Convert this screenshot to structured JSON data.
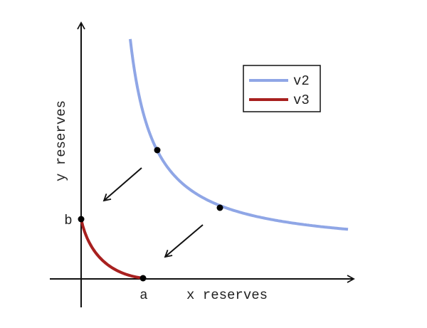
{
  "axes": {
    "x_label": "x reserves",
    "y_label": "y reserves"
  },
  "points": {
    "a": "a",
    "b": "b"
  },
  "legend": [
    {
      "label": "v2"
    },
    {
      "label": "v3"
    }
  ]
}
